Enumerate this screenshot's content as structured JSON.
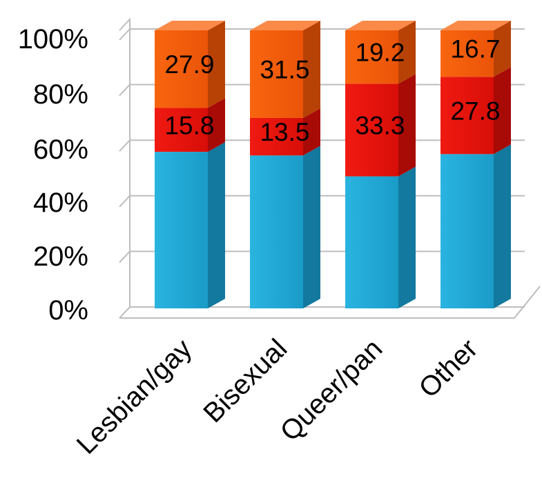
{
  "chart_data": {
    "type": "bar",
    "stacked": true,
    "percent": true,
    "three_d": true,
    "categories": [
      "Lesbian/gay",
      "Bisexual",
      "Queer/pan",
      "Other"
    ],
    "series": [
      {
        "values": [
          56.3,
          55.0,
          47.5,
          55.5
        ],
        "color": "#1EA5D1",
        "labels": [
          "",
          "",
          "",
          ""
        ]
      },
      {
        "values": [
          15.8,
          13.5,
          33.3,
          27.8
        ],
        "color": "#E8120C",
        "labels": [
          "15.8",
          "13.5",
          "33.3",
          "27.8"
        ]
      },
      {
        "values": [
          27.9,
          31.5,
          19.2,
          16.7
        ],
        "color": "#F25A0A",
        "labels": [
          "27.9",
          "31.5",
          "19.2",
          "16.7"
        ]
      }
    ],
    "y_ticks": [
      "0%",
      "20%",
      "40%",
      "60%",
      "80%",
      "100%"
    ],
    "ylim": [
      0,
      100
    ],
    "title": "",
    "xlabel": "",
    "ylabel": "",
    "grid": true,
    "legend": "none"
  }
}
